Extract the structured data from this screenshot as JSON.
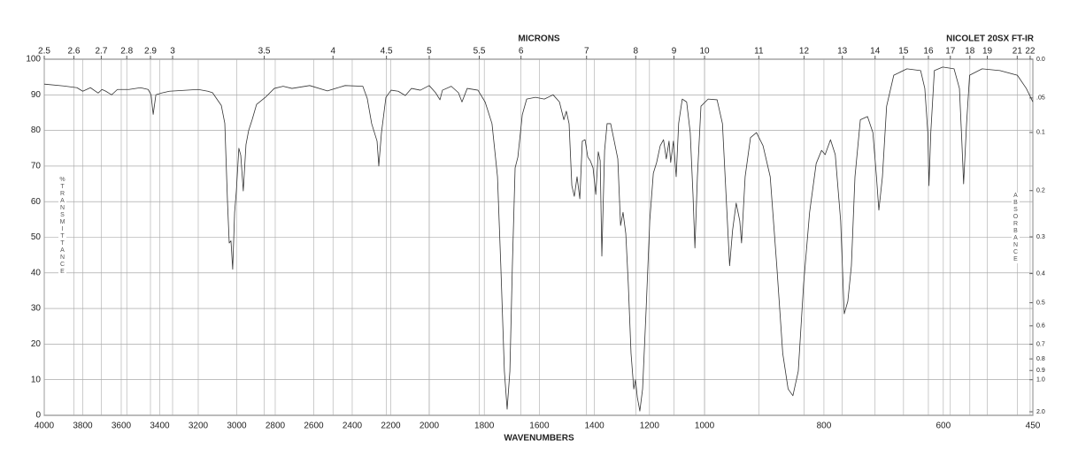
{
  "chart_data": {
    "type": "line",
    "instrument": "NICOLET 20SX FT-IR",
    "x2label": "MICRONS",
    "xlabel": "WAVENUMBERS",
    "ylabel": "%TRANSMITTANCE",
    "y2label": "ABSORBANCE",
    "xlim": [
      4000,
      450
    ],
    "xscale": "piecewise",
    "xbreaks": [
      2000,
      1000
    ],
    "xticks": [
      4000,
      3800,
      3600,
      3400,
      3200,
      3000,
      2800,
      2600,
      2400,
      2200,
      2000,
      1800,
      1600,
      1400,
      1200,
      1000,
      800,
      600,
      450
    ],
    "x2scale": "reciprocal",
    "x2ticks": [
      2.5,
      2.6,
      2.7,
      2.8,
      2.9,
      3,
      3.5,
      4,
      4.5,
      5,
      5.5,
      6,
      7,
      8,
      9,
      10,
      11,
      12,
      13,
      14,
      15,
      16,
      17,
      18,
      19,
      21,
      22
    ],
    "ylim": [
      0,
      100
    ],
    "yticks": [
      0,
      10,
      20,
      30,
      40,
      50,
      60,
      70,
      80,
      90,
      100
    ],
    "y2scale": "absorbance",
    "y2ticks": [
      {
        "value": 0,
        "label": "0.0"
      },
      {
        "value": 0.05,
        "label": ".05"
      },
      0.1,
      0.2,
      0.3,
      0.4,
      0.5,
      0.6,
      0.7,
      0.8,
      0.9,
      {
        "value": 1,
        "label": "1.0"
      },
      {
        "value": 2,
        "label": "2.0"
      }
    ],
    "grid": true,
    "x": [
      4000,
      3900,
      3830,
      3800,
      3760,
      3720,
      3700,
      3680,
      3650,
      3620,
      3560,
      3500,
      3460,
      3445,
      3434,
      3420,
      3390,
      3350,
      3200,
      3150,
      3126,
      3080,
      3062,
      3048,
      3039,
      3030,
      3021,
      3011,
      3002,
      2989,
      2979,
      2966,
      2952,
      2938,
      2920,
      2897,
      2851,
      2805,
      2759,
      2713,
      2621,
      2529,
      2437,
      2345,
      2322,
      2299,
      2271,
      2262,
      2248,
      2225,
      2198,
      2161,
      2124,
      2092,
      2046,
      2000,
      1977,
      1961,
      1952,
      1920,
      1894,
      1881,
      1862,
      1823,
      1797,
      1772,
      1752,
      1740,
      1727,
      1717,
      1707,
      1698,
      1688,
      1678,
      1662,
      1646,
      1614,
      1582,
      1550,
      1527,
      1511,
      1502,
      1492,
      1482,
      1473,
      1463,
      1453,
      1444,
      1434,
      1424,
      1415,
      1405,
      1395,
      1386,
      1379,
      1373,
      1363,
      1354,
      1341,
      1328,
      1315,
      1305,
      1296,
      1286,
      1277,
      1267,
      1257,
      1251,
      1244,
      1235,
      1225,
      1212,
      1199,
      1186,
      1174,
      1161,
      1149,
      1139,
      1129,
      1123,
      1113,
      1103,
      1094,
      1081,
      1065,
      1052,
      1042,
      1035,
      1026,
      1013,
      994,
      979,
      970,
      964,
      958,
      953,
      947,
      941,
      938,
      932,
      923,
      913,
      902,
      890,
      879,
      869,
      860,
      852,
      843,
      834,
      824,
      813,
      804,
      798,
      789,
      781,
      772,
      766,
      760,
      754,
      748,
      739,
      727,
      718,
      712,
      708,
      702,
      695,
      683,
      661,
      638,
      631,
      626,
      624,
      621,
      615,
      601,
      582,
      573,
      569,
      566,
      561,
      556,
      535,
      505,
      476,
      461,
      450
    ],
    "series": [
      {
        "color": "#333333",
        "values": [
          93,
          92.5,
          92,
          91,
          92,
          90.5,
          91.5,
          91,
          90,
          91.5,
          91.5,
          92,
          91.5,
          90,
          84.5,
          90,
          90.5,
          91,
          91.5,
          91,
          90.6,
          87,
          82,
          60,
          48.4,
          49,
          41,
          57,
          63,
          75,
          73,
          63,
          76,
          80,
          83,
          87.3,
          89.3,
          91.8,
          92.4,
          91.8,
          92.6,
          91.1,
          92.6,
          92.4,
          89,
          81.9,
          77,
          70,
          79.4,
          89.3,
          91.3,
          91,
          89.8,
          91.8,
          91.3,
          92.6,
          90.6,
          88.6,
          91.3,
          92.4,
          90.6,
          88,
          91.8,
          91.3,
          88,
          81.9,
          67,
          42,
          12.4,
          1.7,
          12.4,
          42,
          69.5,
          72.5,
          84.4,
          88.8,
          89.3,
          88.8,
          90,
          88,
          83,
          85.4,
          81.9,
          64.5,
          61.5,
          67,
          60.8,
          77,
          77.4,
          72.5,
          71.5,
          69.5,
          62,
          74,
          71.5,
          44.7,
          74.4,
          81.9,
          81.9,
          77,
          72,
          53.3,
          57,
          51,
          37,
          17.4,
          7.4,
          10,
          5,
          1.2,
          7.4,
          30,
          54.6,
          68,
          71,
          75.7,
          77.4,
          72,
          77,
          71,
          77,
          67,
          82,
          88.8,
          88,
          79.4,
          62,
          47,
          67,
          86.8,
          88.8,
          88.6,
          81.9,
          62,
          42,
          52,
          59.6,
          54.6,
          48.4,
          67,
          78,
          79.4,
          75.7,
          67,
          42,
          17.4,
          7.4,
          5.5,
          12.4,
          37,
          57,
          70.7,
          74.4,
          73.2,
          77.4,
          73.2,
          54.6,
          28.5,
          32,
          42,
          67,
          83,
          83.9,
          79.4,
          67,
          57.6,
          67,
          86.8,
          95.5,
          97.3,
          96.8,
          91.8,
          79.4,
          64.5,
          79.4,
          96.8,
          97.8,
          97.3,
          91.8,
          77,
          65,
          82,
          95.5,
          97.3,
          96.8,
          95.5,
          91.8,
          88
        ]
      }
    ]
  }
}
